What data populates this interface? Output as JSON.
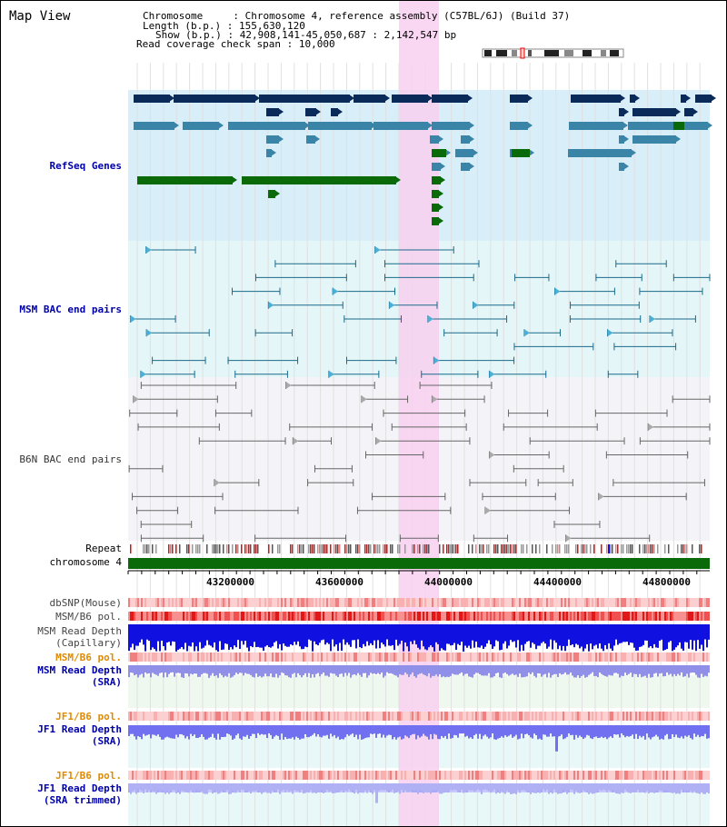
{
  "app": {
    "title": "Map View"
  },
  "info": {
    "chromosome_key": "Chromosome     ",
    "chromosome_val": "Chromosome 4, reference assembly (C57BL/6J) (Build 37)",
    "length_key": "Length (b.p.)",
    "length_val": "155,630,120",
    "show_key": "Show (b.p.)",
    "show_val": "42,908,141-45,050,687 : 2,142,547 bp",
    "coverage_key": "Read coverage check span",
    "coverage_val": "10,000"
  },
  "tracks": {
    "refseq": "RefSeq Genes",
    "msm_bac": "MSM BAC end pairs",
    "b6n_bac": "B6N BAC end pairs",
    "repeat": "Repeat",
    "chromosome": "chromosome 4",
    "dbsnp": "dbSNP(Mouse)",
    "msm_b6_pol": "MSM/B6 pol.",
    "msm_depth_cap_1": "MSM Read Depth",
    "msm_depth_cap_2": "(Capillary)",
    "msm_b6_pol_sra": "MSM/B6 pol.",
    "msm_depth_sra_1": "MSM Read Depth",
    "msm_depth_sra_2": "(SRA)",
    "jf1_b6_pol": "JF1/B6 pol.",
    "jf1_depth_sra_1": "JF1 Read Depth",
    "jf1_depth_sra_2": "(SRA)",
    "jf1_b6_pol_2": "JF1/B6 pol.",
    "jf1_depth_trim_1": "JF1 Read Depth",
    "jf1_depth_trim_2": "(SRA trimmed)"
  },
  "axis": {
    "ticks": [
      "43200000",
      "43600000",
      "44000000",
      "44400000",
      "44800000"
    ]
  },
  "colors": {
    "refseq_bg": "#d8eef8",
    "msm_bac_bg": "#e4f6f8",
    "b6n_bg": "#f4f4f8",
    "highlight": "#f8d0f0",
    "gene_dark": "#0a2a5a",
    "gene_mid": "#3a84a8",
    "gene_green": "#0a6a0a",
    "chromosome_bar": "#0a6a0a",
    "depth_blue": "#1010e0",
    "depth_light": "#7070f0"
  }
}
